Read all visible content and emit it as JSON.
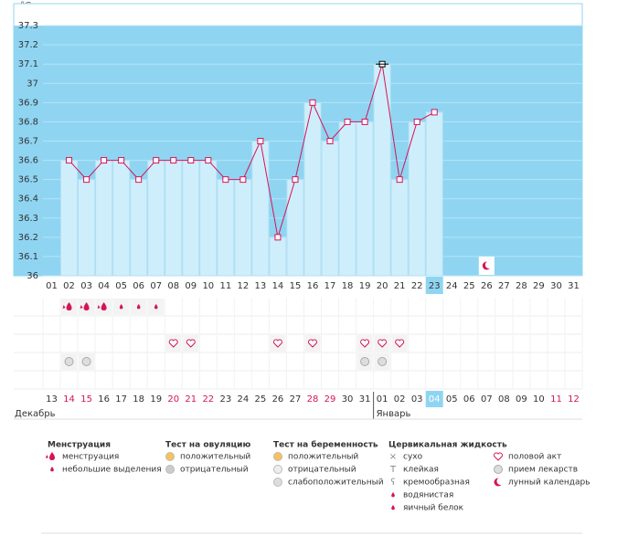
{
  "unit": "°C",
  "chart_data": {
    "type": "line",
    "categories": [
      "01",
      "02",
      "03",
      "04",
      "05",
      "06",
      "07",
      "08",
      "09",
      "10",
      "11",
      "12",
      "13",
      "14",
      "15",
      "16",
      "17",
      "18",
      "19",
      "20",
      "21",
      "22",
      "23",
      "24",
      "25",
      "26",
      "27",
      "28",
      "29",
      "30",
      "31"
    ],
    "values": [
      null,
      36.6,
      36.5,
      36.6,
      36.6,
      36.5,
      36.6,
      36.6,
      36.6,
      36.6,
      36.5,
      36.5,
      36.7,
      36.2,
      36.5,
      36.9,
      36.7,
      36.8,
      36.8,
      37.1,
      36.5,
      36.8,
      36.85,
      null,
      null,
      null,
      null,
      null,
      null,
      null,
      null
    ],
    "ylim": [
      36,
      37.4
    ],
    "yticks": [
      36,
      36.1,
      36.2,
      36.3,
      36.4,
      36.5,
      36.6,
      36.7,
      36.8,
      36.9,
      37,
      37.1,
      37.2,
      37.3
    ],
    "color": "#d4145a",
    "bar_color": "#cfeefc",
    "background": "#8fd5f2",
    "today_index": 22
  },
  "dates": [
    "13",
    "14",
    "15",
    "16",
    "17",
    "18",
    "19",
    "20",
    "21",
    "22",
    "23",
    "24",
    "25",
    "26",
    "27",
    "28",
    "29",
    "30",
    "31",
    "01",
    "02",
    "03",
    "04",
    "05",
    "06",
    "07",
    "08",
    "09",
    "10",
    "11",
    "12"
  ],
  "date_holiday": [
    false,
    true,
    true,
    false,
    false,
    false,
    false,
    true,
    true,
    true,
    false,
    false,
    false,
    false,
    false,
    true,
    true,
    false,
    false,
    false,
    false,
    false,
    false,
    false,
    false,
    false,
    false,
    false,
    false,
    true,
    true
  ],
  "months": [
    {
      "label": "Декабрь",
      "start": 0
    },
    {
      "label": "Январь",
      "start": 19
    }
  ],
  "legend": [
    {
      "title": "Менструация",
      "items": [
        {
          "label": "менструация",
          "days": [
            "02",
            "03",
            "04"
          ]
        },
        {
          "label": "небольшие выделения",
          "days": [
            "05",
            "06",
            "07"
          ]
        }
      ]
    },
    {
      "title": "Тест на овуляцию",
      "items": [
        {
          "label": "положительный"
        },
        {
          "label": "отрицательный"
        }
      ]
    },
    {
      "title": "Тест на беременность",
      "items": [
        {
          "label": "положительный"
        },
        {
          "label": "отрицательный"
        },
        {
          "label": "слабоположительный"
        }
      ]
    },
    {
      "title": "Цервикальная жидкость",
      "items": [
        {
          "label": "сухо"
        },
        {
          "label": "клейкая"
        },
        {
          "label": "кремообразная"
        },
        {
          "label": "водянистая"
        },
        {
          "label": "яичный белок"
        }
      ]
    },
    {
      "items": [
        {
          "label": "половой акт",
          "days": [
            "08",
            "09",
            "14",
            "16",
            "19",
            "20",
            "21"
          ]
        },
        {
          "label": "прием лекарств",
          "days": [
            "02",
            "03",
            "19",
            "20"
          ]
        },
        {
          "label": "лунный календарь",
          "days": [
            "26"
          ]
        }
      ]
    }
  ]
}
